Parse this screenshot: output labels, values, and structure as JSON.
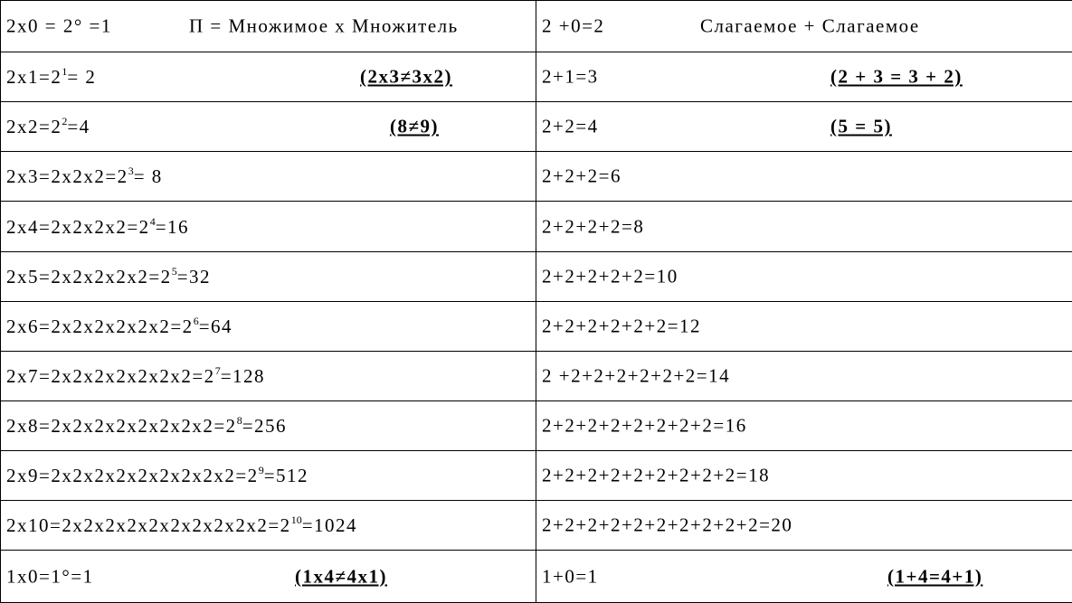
{
  "table": {
    "rows": [
      [
        {
          "text": "2x0 = 2° =1",
          "note": "П = Множимое x Множитель"
        },
        {
          "text": "2 +0=2",
          "note": "Слагаемое + Слагаемое"
        }
      ],
      [
        {
          "text": "2x1=2",
          "sup": "1",
          "after": "= 2",
          "note": "(2x3≠3x2)"
        },
        {
          "text": "2+1=3",
          "note": "(2 + 3 = 3 + 2)"
        }
      ],
      [
        {
          "text": "2x2=2",
          "sup": "2",
          "after": "=4",
          "note": "(8≠9)"
        },
        {
          "text": "2+2=4",
          "note": "(5 = 5)"
        }
      ],
      [
        {
          "text": "2x3=2x2x2=2",
          "sup": "3",
          "after": "= 8"
        },
        {
          "text": "2+2+2=6"
        }
      ],
      [
        {
          "text": "2x4=2x2x2x2=2",
          "sup": "4",
          "after": "=16"
        },
        {
          "text": "2+2+2+2=8"
        }
      ],
      [
        {
          "text": "2x5=2x2x2x2x2=2",
          "sup": "5",
          "after": "=32"
        },
        {
          "text": "2+2+2+2+2=10"
        }
      ],
      [
        {
          "text": "2x6=2x2x2x2x2x2=2",
          "sup": "6",
          "after": "=64"
        },
        {
          "text": "2+2+2+2+2+2=12"
        }
      ],
      [
        {
          "text": "2x7=2x2x2x2x2x2x2=2",
          "sup": "7",
          "after": "=128"
        },
        {
          "text": "2 +2+2+2+2+2+2=14"
        }
      ],
      [
        {
          "text": "2x8=2x2x2x2x2x2x2x2=2",
          "sup": "8",
          "after": "=256"
        },
        {
          "text": "2+2+2+2+2+2+2+2=16"
        }
      ],
      [
        {
          "text": "2x9=2x2x2x2x2x2x2x2x2=2",
          "sup": "9",
          "after": "=512"
        },
        {
          "text": "2+2+2+2+2+2+2+2+2=18"
        }
      ],
      [
        {
          "text": "2x10=2x2x2x2x2x2x2x2x2x2=2",
          "sup": "10",
          "after": "=1024"
        },
        {
          "text": "2+2+2+2+2+2+2+2+2+2=20"
        }
      ],
      [
        {
          "text": "1x0=1°=1",
          "note": "(1x4≠4x1)"
        },
        {
          "text": "1+0=1",
          "note": "(1+4=4+1)"
        }
      ]
    ]
  }
}
